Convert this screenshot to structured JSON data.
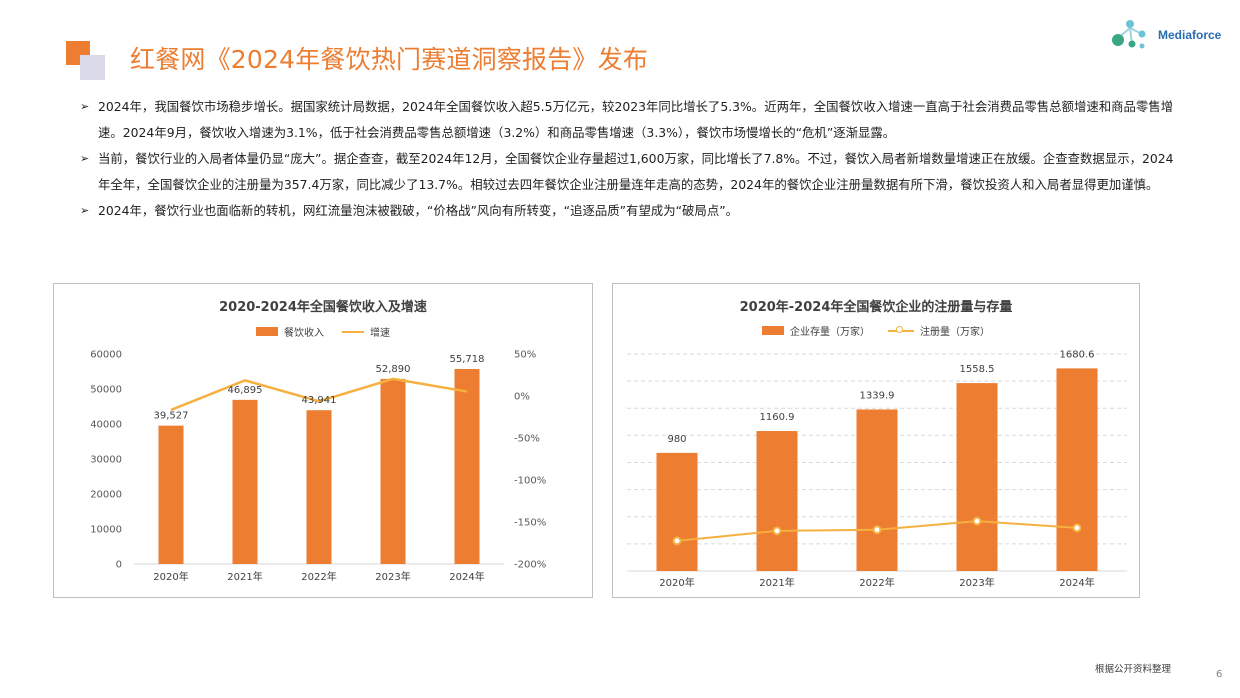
{
  "header": {
    "title": "红餐网《2024年餐饮热门赛道洞察报告》发布",
    "brand": "Mediaforce"
  },
  "bullets": [
    "2024年，我国餐饮市场稳步增长。据国家统计局数据，2024年全国餐饮收入超5.5万亿元，较2023年同比增长了5.3%。近两年，全国餐饮收入增速一直高于社会消费品零售总额增速和商品零售增速。2024年9月，餐饮收入增速为3.1%，低于社会消费品零售总额增速（3.2%）和商品零售增速（3.3%），餐饮市场慢增长的“危机”逐渐显露。",
    "当前，餐饮行业的入局者体量仍显“庞大”。据企查查，截至2024年12月，全国餐饮企业存量超过1,600万家，同比增长了7.8%。不过，餐饮入局者新增数量增速正在放缓。企查查数据显示，2024年全年，全国餐饮企业的注册量为357.4万家，同比减少了13.7%。相较过去四年餐饮企业注册量连年走高的态势，2024年的餐饮企业注册量数据有所下滑，餐饮投资人和入局者显得更加谨慎。",
    "2024年，餐饮行业也面临新的转机，网红流量泡沫被戳破，“价格战”风向有所转变，“追逐品质”有望成为“破局点”。"
  ],
  "footer": {
    "source": "根据公开资料整理",
    "page": "6"
  },
  "chart_data": [
    {
      "type": "bar",
      "title": "2020-2024年全国餐饮收入及增速",
      "categories": [
        "2020年",
        "2021年",
        "2022年",
        "2023年",
        "2024年"
      ],
      "series": [
        {
          "name": "餐饮收入",
          "kind": "bar",
          "axis": "left",
          "values": [
            39527,
            46895,
            43941,
            52890,
            55718
          ],
          "labels": [
            "39,527",
            "46,895",
            "43,941",
            "52,890",
            "55,718"
          ]
        },
        {
          "name": "增速",
          "kind": "line",
          "axis": "right",
          "values": [
            -16.6,
            18.6,
            -6.3,
            20.4,
            5.3
          ]
        }
      ],
      "ylim": [
        0,
        60000
      ],
      "yticks": [
        0,
        10000,
        20000,
        30000,
        40000,
        50000,
        60000
      ],
      "ytick_labels": [
        "0",
        "10000",
        "20000",
        "30000",
        "40000",
        "50000",
        "60000"
      ],
      "y2lim": [
        -200,
        50
      ],
      "y2ticks": [
        -200,
        -150,
        -100,
        -50,
        0,
        50
      ],
      "y2tick_labels": [
        "-200%",
        "-150%",
        "-100%",
        "-50%",
        "0%",
        "50%"
      ],
      "grid": false,
      "legend": "top",
      "colors": {
        "bar": "#ed7d31",
        "line": "#f5b040"
      }
    },
    {
      "type": "bar",
      "title": "2020年-2024年全国餐饮企业的注册量与存量",
      "categories": [
        "2020年",
        "2021年",
        "2022年",
        "2023年",
        "2024年"
      ],
      "series": [
        {
          "name": "企业存量（万家）",
          "kind": "bar",
          "values": [
            980,
            1160.9,
            1339.9,
            1558.5,
            1680.6
          ],
          "labels": [
            "980",
            "1160.9",
            "1339.9",
            "1558.5",
            "1680.6"
          ]
        },
        {
          "name": "注册量（万家）",
          "kind": "line",
          "values": [
            250,
            333,
            342,
            414,
            357.4
          ]
        }
      ],
      "ylim": [
        0,
        1800
      ],
      "grid": true,
      "legend": "top",
      "colors": {
        "bar": "#ed7d31",
        "line": "#f5b040"
      }
    }
  ]
}
